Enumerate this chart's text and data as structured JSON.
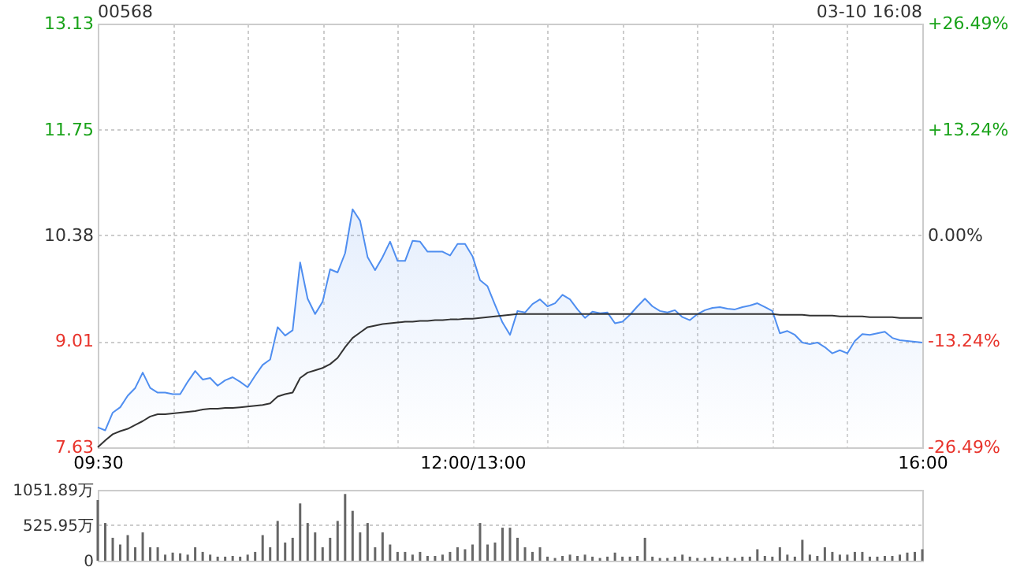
{
  "chart_data": [
    {
      "type": "area",
      "title": "00568",
      "annotations": [
        "03-10 16:08"
      ],
      "grid": true,
      "categories": [
        "09:30",
        null,
        null,
        null,
        null,
        null,
        null,
        null,
        null,
        null,
        null,
        null,
        null,
        null,
        null,
        null,
        null,
        null,
        null,
        null,
        null,
        null,
        null,
        null,
        null,
        null,
        null,
        null,
        null,
        null,
        null,
        null,
        null,
        null,
        null,
        null,
        null,
        null,
        null,
        null,
        null,
        null,
        null,
        null,
        null,
        null,
        null,
        null,
        null,
        null,
        "12:00/13:00",
        null,
        null,
        null,
        null,
        null,
        null,
        null,
        null,
        null,
        null,
        null,
        null,
        null,
        null,
        null,
        null,
        null,
        null,
        null,
        null,
        null,
        null,
        null,
        null,
        null,
        null,
        null,
        null,
        null,
        null,
        null,
        null,
        null,
        null,
        null,
        null,
        null,
        null,
        null,
        null,
        null,
        null,
        null,
        null,
        null,
        null,
        null,
        null,
        null,
        null,
        null,
        null,
        null,
        null,
        null,
        null,
        null,
        null,
        null,
        "16:00"
      ],
      "ylim": [
        7.63,
        13.13
      ],
      "yticks": [
        7.63,
        9.01,
        10.38,
        11.75,
        13.13
      ],
      "y2lim": [
        -26.49,
        26.49
      ],
      "y2ticks": [
        {
          "value": -26.49,
          "label": "-26.49%"
        },
        {
          "value": -13.24,
          "label": "-13.24%"
        },
        {
          "value": 0,
          "label": "0.00%"
        },
        {
          "value": 13.24,
          "label": "+13.24%"
        },
        {
          "value": 26.49,
          "label": "+26.49%"
        }
      ],
      "series": [
        {
          "type": "area",
          "color": "#4f8ef0",
          "values": [
            7.89,
            7.85,
            8.08,
            8.15,
            8.3,
            8.4,
            8.6,
            8.4,
            8.34,
            8.34,
            8.32,
            8.32,
            8.48,
            8.62,
            8.51,
            8.53,
            8.43,
            8.5,
            8.54,
            8.48,
            8.41,
            8.56,
            8.7,
            8.77,
            9.19,
            9.08,
            9.15,
            10.03,
            9.56,
            9.36,
            9.52,
            9.94,
            9.9,
            10.15,
            10.72,
            10.57,
            10.1,
            9.93,
            10.1,
            10.3,
            10.05,
            10.05,
            10.31,
            10.3,
            10.17,
            10.17,
            10.17,
            10.12,
            10.27,
            10.27,
            10.11,
            9.8,
            9.72,
            9.48,
            9.25,
            9.09,
            9.4,
            9.38,
            9.49,
            9.55,
            9.46,
            9.5,
            9.61,
            9.55,
            9.42,
            9.31,
            9.39,
            9.37,
            9.38,
            9.24,
            9.26,
            9.35,
            9.46,
            9.56,
            9.46,
            9.4,
            9.38,
            9.41,
            9.32,
            9.28,
            9.36,
            9.41,
            9.44,
            9.45,
            9.43,
            9.42,
            9.45,
            9.47,
            9.5,
            9.45,
            9.4,
            9.11,
            9.14,
            9.09,
            8.99,
            8.97,
            8.99,
            8.93,
            8.85,
            8.89,
            8.85,
            9.01,
            9.1,
            9.09,
            9.11,
            9.13,
            9.05,
            9.02,
            9.01,
            9,
            8.99
          ]
        },
        {
          "type": "line",
          "color": "#333333",
          "values": [
            7.63,
            7.72,
            7.8,
            7.84,
            7.87,
            7.92,
            7.97,
            8.03,
            8.06,
            8.06,
            8.07,
            8.08,
            8.09,
            8.1,
            8.12,
            8.13,
            8.13,
            8.14,
            8.14,
            8.15,
            8.16,
            8.17,
            8.18,
            8.2,
            8.29,
            8.32,
            8.34,
            8.53,
            8.6,
            8.63,
            8.66,
            8.71,
            8.79,
            8.93,
            9.05,
            9.12,
            9.19,
            9.21,
            9.23,
            9.24,
            9.25,
            9.26,
            9.26,
            9.27,
            9.27,
            9.28,
            9.28,
            9.29,
            9.29,
            9.3,
            9.3,
            9.31,
            9.32,
            9.33,
            9.34,
            9.35,
            9.36,
            9.36,
            9.36,
            9.36,
            9.36,
            9.36,
            9.36,
            9.36,
            9.36,
            9.36,
            9.36,
            9.36,
            9.36,
            9.36,
            9.36,
            9.36,
            9.36,
            9.36,
            9.36,
            9.36,
            9.36,
            9.36,
            9.36,
            9.36,
            9.36,
            9.36,
            9.36,
            9.36,
            9.36,
            9.36,
            9.36,
            9.36,
            9.36,
            9.36,
            9.36,
            9.35,
            9.35,
            9.35,
            9.35,
            9.34,
            9.34,
            9.34,
            9.34,
            9.33,
            9.33,
            9.33,
            9.33,
            9.32,
            9.32,
            9.32,
            9.32,
            9.31,
            9.31,
            9.31,
            9.31
          ]
        }
      ]
    },
    {
      "type": "bar",
      "color": "#666666",
      "tick_labels": "y",
      "grid": "y",
      "categories": [
        null,
        null,
        null,
        null,
        null,
        null,
        null,
        null,
        null,
        null,
        null,
        null,
        null,
        null,
        null,
        null,
        null,
        null,
        null,
        null,
        null,
        null,
        null,
        null,
        null,
        null,
        null,
        null,
        null,
        null,
        null,
        null,
        null,
        null,
        null,
        null,
        null,
        null,
        null,
        null,
        null,
        null,
        null,
        null,
        null,
        null,
        null,
        null,
        null,
        null,
        null,
        null,
        null,
        null,
        null,
        null,
        null,
        null,
        null,
        null,
        null,
        null,
        null,
        null,
        null,
        null,
        null,
        null,
        null,
        null,
        null,
        null,
        null,
        null,
        null,
        null,
        null,
        null,
        null,
        null,
        null,
        null,
        null,
        null,
        null,
        null,
        null,
        null,
        null,
        null,
        null,
        null,
        null,
        null,
        null,
        null,
        null,
        null,
        null,
        null,
        null,
        null,
        null,
        null,
        null,
        null,
        null,
        null,
        null,
        null,
        null
      ],
      "ylim": [
        0,
        1051.89
      ],
      "yticks": [
        0,
        {
          "value": 525.95,
          "label": "525.95万"
        },
        {
          "value": 1051.89,
          "label": "1051.89万"
        }
      ],
      "values": [
        900,
        560,
        340,
        240,
        380,
        200,
        420,
        200,
        200,
        90,
        120,
        110,
        90,
        200,
        130,
        90,
        60,
        60,
        70,
        60,
        90,
        130,
        380,
        200,
        590,
        270,
        340,
        850,
        560,
        420,
        200,
        340,
        590,
        990,
        740,
        420,
        560,
        200,
        420,
        240,
        130,
        130,
        90,
        130,
        70,
        70,
        90,
        130,
        200,
        170,
        240,
        560,
        240,
        270,
        490,
        490,
        340,
        200,
        130,
        200,
        60,
        40,
        70,
        90,
        70,
        90,
        60,
        40,
        60,
        120,
        60,
        60,
        70,
        340,
        60,
        40,
        40,
        60,
        90,
        60,
        40,
        40,
        60,
        40,
        60,
        40,
        60,
        60,
        170,
        70,
        60,
        200,
        90,
        60,
        310,
        90,
        70,
        200,
        130,
        90,
        90,
        130,
        130,
        60,
        60,
        70,
        70,
        90,
        120,
        130,
        170
      ]
    }
  ]
}
